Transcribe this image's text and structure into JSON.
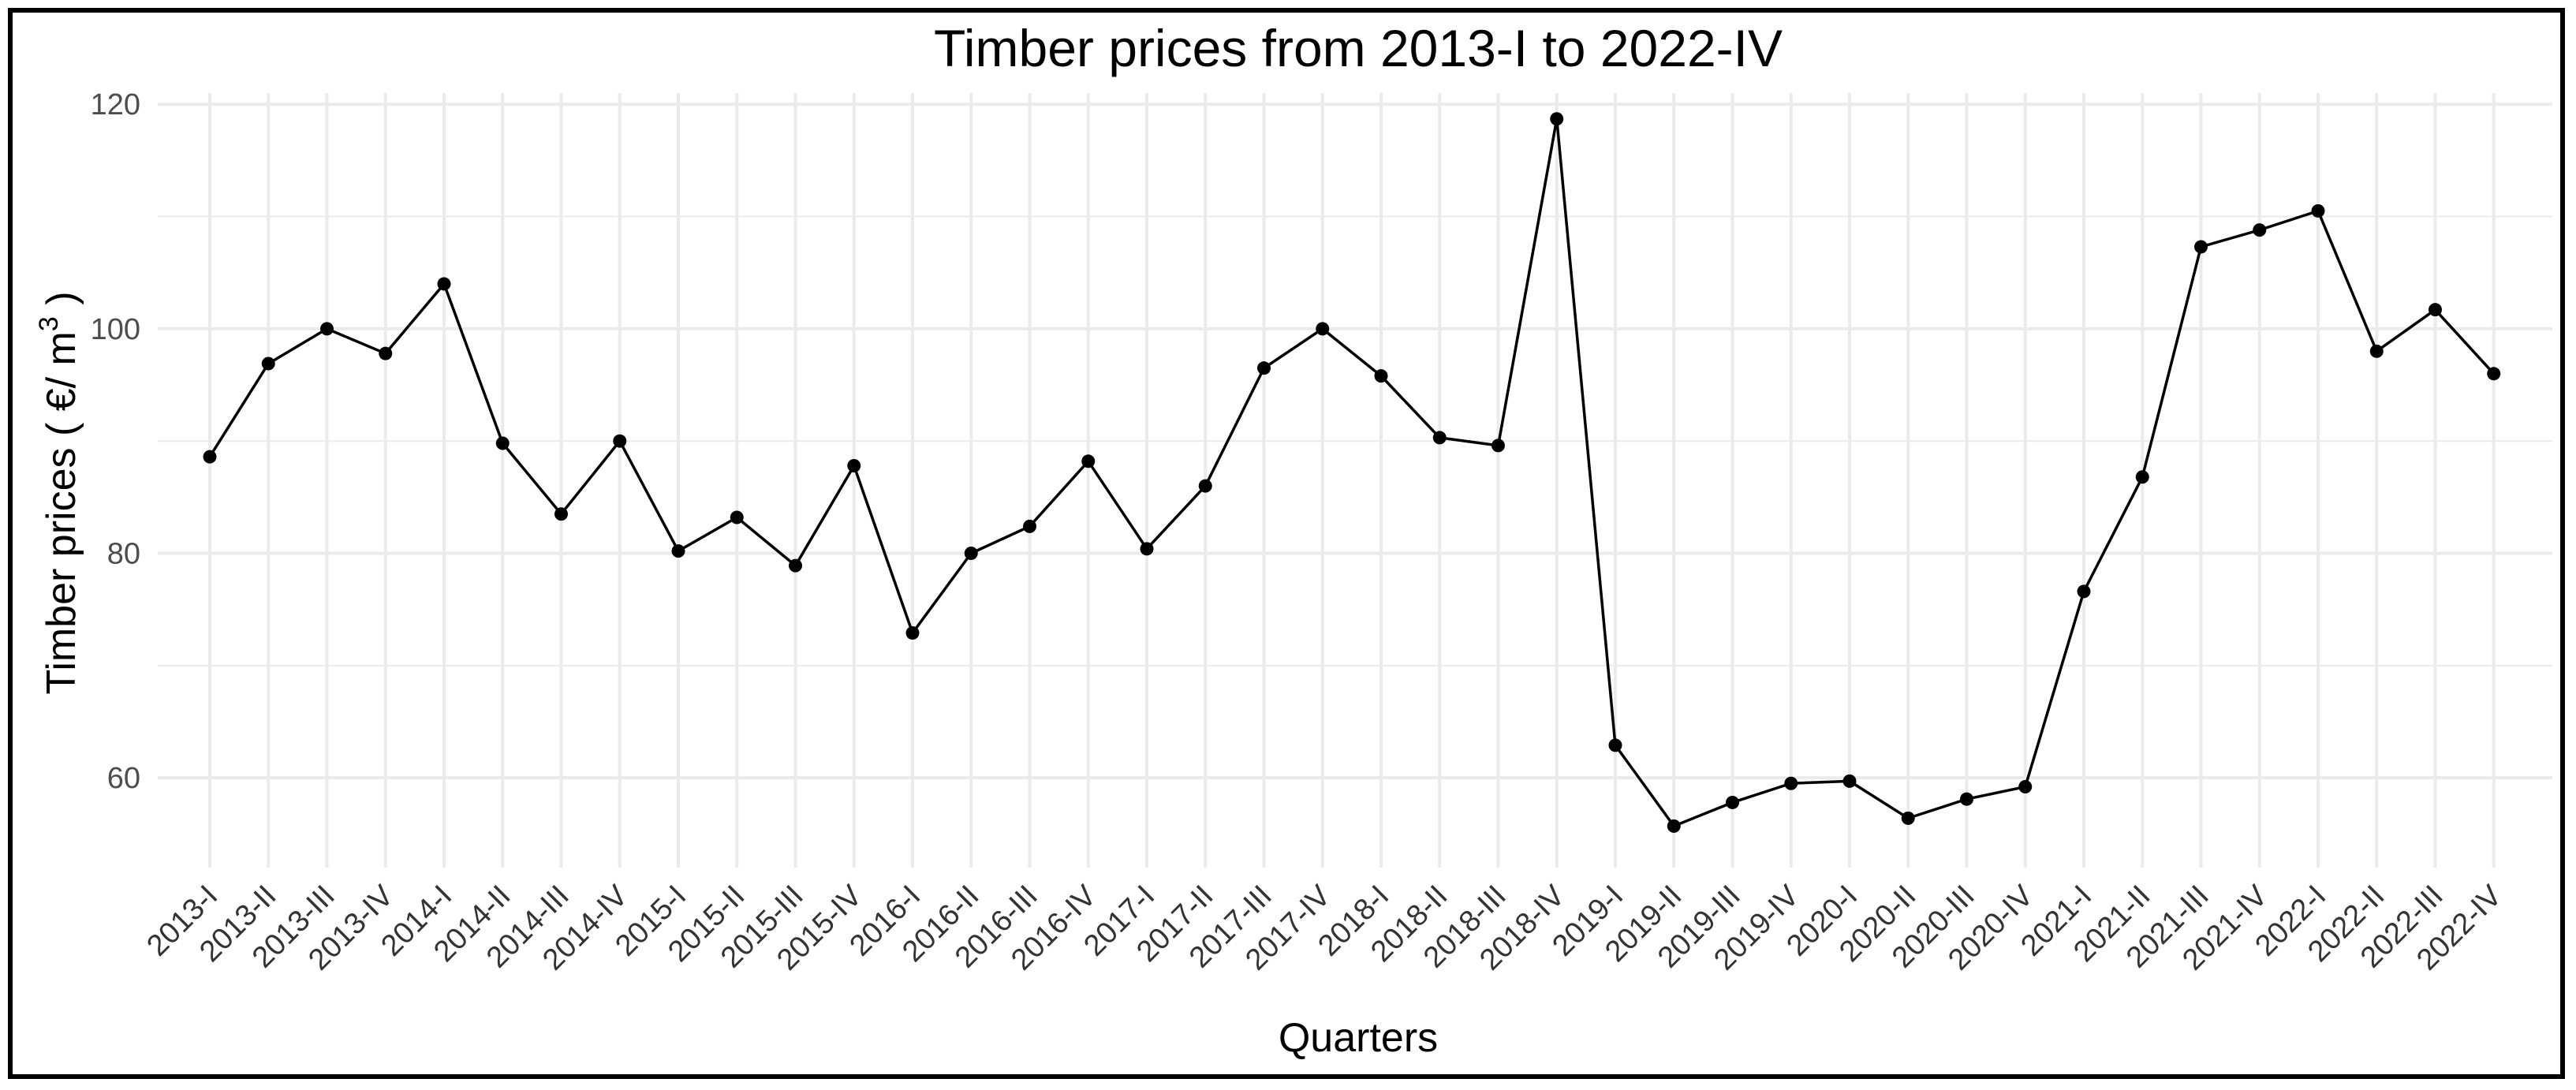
{
  "chart_data": {
    "type": "line",
    "title": "Timber prices from 2013-I to 2022-IV",
    "xlabel": "Quarters",
    "ylabel": "Timber prices ( €/ m³ )",
    "ylabel_parts": {
      "before": "Timber prices ( €/ m",
      "superscript": "3",
      "after": " )"
    },
    "ylim": [
      52,
      121
    ],
    "yticks": [
      60,
      80,
      100,
      120
    ],
    "grid": true,
    "categories": [
      "2013-I",
      "2013-II",
      "2013-III",
      "2013-IV",
      "2014-I",
      "2014-II",
      "2014-III",
      "2014-IV",
      "2015-I",
      "2015-II",
      "2015-III",
      "2015-IV",
      "2016-I",
      "2016-II",
      "2016-III",
      "2016-IV",
      "2017-I",
      "2017-II",
      "2017-III",
      "2017-IV",
      "2018-I",
      "2018-II",
      "2018-III",
      "2018-IV",
      "2019-I",
      "2019-II",
      "2019-III",
      "2019-IV",
      "2020-I",
      "2020-II",
      "2020-III",
      "2020-IV",
      "2021-I",
      "2021-II",
      "2021-III",
      "2021-IV",
      "2022-I",
      "2022-II",
      "2022-III",
      "2022-IV"
    ],
    "values": [
      88.6,
      96.9,
      100.0,
      97.8,
      104.0,
      89.8,
      83.5,
      90.0,
      80.2,
      83.2,
      78.9,
      87.8,
      72.9,
      80.0,
      82.4,
      88.2,
      80.4,
      86.0,
      96.5,
      100.0,
      95.8,
      90.3,
      89.6,
      118.7,
      62.9,
      55.7,
      57.8,
      59.5,
      59.7,
      56.4,
      58.1,
      59.2,
      76.6,
      86.8,
      107.3,
      108.8,
      110.5,
      98.0,
      101.7,
      96.0
    ],
    "colors": {
      "line": "#000000",
      "point": "#000000",
      "grid": "#ebebeb",
      "tick_text_y": "#4d4d4d",
      "tick_text_x": "#333333"
    }
  }
}
